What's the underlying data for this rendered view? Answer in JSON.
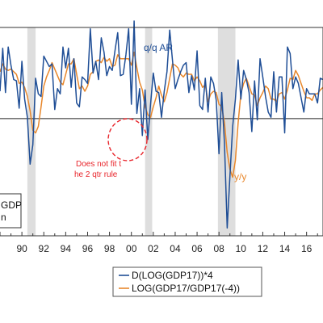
{
  "chart_data": {
    "type": "line",
    "x_start": 1988,
    "x_end": 2017.5,
    "ylim": [
      -9,
      7
    ],
    "zero_line": 0,
    "tick_labels": [
      "90",
      "92",
      "94",
      "96",
      "98",
      "00",
      "02",
      "04",
      "06",
      "08",
      "10",
      "12",
      "14",
      "16"
    ],
    "recessions": [
      [
        1990.5,
        1991.25
      ],
      [
        2001.25,
        2001.9
      ],
      [
        2007.9,
        2009.5
      ]
    ],
    "series": [
      {
        "name": "D(LOG(GDP17))*4",
        "color": "#1f4e96",
        "style": "solid",
        "x": [
          1988,
          1988.25,
          1988.5,
          1988.75,
          1989,
          1989.25,
          1989.5,
          1989.75,
          1990,
          1990.25,
          1990.5,
          1990.75,
          1991,
          1991.25,
          1991.5,
          1991.75,
          1992,
          1992.25,
          1992.5,
          1992.75,
          1993,
          1993.25,
          1993.5,
          1993.75,
          1994,
          1994.25,
          1994.5,
          1994.75,
          1995,
          1995.25,
          1995.5,
          1995.75,
          1996,
          1996.25,
          1996.5,
          1996.75,
          1997,
          1997.25,
          1997.5,
          1997.75,
          1998,
          1998.25,
          1998.5,
          1998.75,
          1999,
          1999.25,
          1999.5,
          1999.75,
          2000,
          2000.25,
          2000.5,
          2000.75,
          2001,
          2001.25,
          2001.5,
          2001.75,
          2002,
          2002.25,
          2002.5,
          2002.75,
          2003,
          2003.25,
          2003.5,
          2003.75,
          2004,
          2004.25,
          2004.5,
          2004.75,
          2005,
          2005.25,
          2005.5,
          2005.75,
          2006,
          2006.25,
          2006.5,
          2006.75,
          2007,
          2007.25,
          2007.5,
          2007.75,
          2008,
          2008.25,
          2008.5,
          2008.75,
          2009,
          2009.25,
          2009.5,
          2009.75,
          2010,
          2010.25,
          2010.5,
          2010.75,
          2011,
          2011.25,
          2011.5,
          2011.75,
          2012,
          2012.25,
          2012.5,
          2012.75,
          2013,
          2013.25,
          2013.5,
          2013.75,
          2014,
          2014.25,
          2014.5,
          2014.75,
          2015,
          2015.25,
          2015.5,
          2015.75,
          2016,
          2016.25,
          2016.5,
          2016.75,
          2017,
          2017.25,
          2017.5
        ],
        "y": [
          2.1,
          5.4,
          2.0,
          5.5,
          4.1,
          3.0,
          2.9,
          0.8,
          4.4,
          1.5,
          0.1,
          -3.5,
          -2.0,
          3.1,
          1.9,
          1.7,
          4.8,
          4.4,
          4.0,
          4.2,
          0.7,
          2.3,
          1.9,
          5.5,
          3.9,
          5.4,
          2.4,
          4.6,
          1.2,
          0.9,
          3.2,
          3.0,
          2.7,
          6.9,
          3.5,
          4.4,
          3.0,
          6.2,
          5.1,
          3.3,
          4.0,
          3.7,
          5.2,
          6.6,
          3.3,
          3.4,
          4.9,
          6.9,
          1.1,
          7.5,
          0.4,
          2.3,
          -1.3,
          2.2,
          -1.6,
          1.1,
          3.5,
          2.1,
          2.0,
          0.1,
          2.1,
          3.6,
          6.8,
          4.5,
          2.3,
          3.0,
          3.6,
          4.1,
          4.3,
          2.0,
          3.3,
          2.2,
          5.2,
          1.0,
          0.7,
          3.1,
          0.5,
          3.2,
          2.7,
          1.4,
          -2.7,
          2.0,
          -1.9,
          -8.4,
          -4.4,
          -0.6,
          1.5,
          4.5,
          1.5,
          3.7,
          3.0,
          2.0,
          -1.0,
          2.9,
          -0.1,
          4.6,
          3.2,
          1.7,
          0.5,
          0.1,
          3.6,
          0.5,
          3.2,
          3.2,
          -1.1,
          5.5,
          5.0,
          2.3,
          3.2,
          2.7,
          1.6,
          0.5,
          2.3,
          1.9,
          1.9,
          1.9,
          1.2,
          3.1,
          3.0
        ]
      },
      {
        "name": "LOG(GDP17/GDP17(-4))",
        "color": "#e8872b",
        "style": "solid",
        "x": [
          1988,
          1988.25,
          1988.5,
          1988.75,
          1989,
          1989.25,
          1989.5,
          1989.75,
          1990,
          1990.25,
          1990.5,
          1990.75,
          1991,
          1991.25,
          1991.5,
          1991.75,
          1992,
          1992.25,
          1992.5,
          1992.75,
          1993,
          1993.25,
          1993.5,
          1993.75,
          1994,
          1994.25,
          1994.5,
          1994.75,
          1995,
          1995.25,
          1995.5,
          1995.75,
          1996,
          1996.25,
          1996.5,
          1996.75,
          1997,
          1997.25,
          1997.5,
          1997.75,
          1998,
          1998.25,
          1998.5,
          1998.75,
          1999,
          1999.25,
          1999.5,
          1999.75,
          2000,
          2000.25,
          2000.5,
          2000.75,
          2001,
          2001.25,
          2001.5,
          2001.75,
          2002,
          2002.25,
          2002.5,
          2002.75,
          2003,
          2003.25,
          2003.5,
          2003.75,
          2004,
          2004.25,
          2004.5,
          2004.75,
          2005,
          2005.25,
          2005.5,
          2005.75,
          2006,
          2006.25,
          2006.5,
          2006.75,
          2007,
          2007.25,
          2007.5,
          2007.75,
          2008,
          2008.25,
          2008.5,
          2008.75,
          2009,
          2009.25,
          2009.5,
          2009.75,
          2010,
          2010.25,
          2010.5,
          2010.75,
          2011,
          2011.25,
          2011.5,
          2011.75,
          2012,
          2012.25,
          2012.5,
          2012.75,
          2013,
          2013.25,
          2013.5,
          2013.75,
          2014,
          2014.25,
          2014.5,
          2014.75,
          2015,
          2015.25,
          2015.5,
          2015.75,
          2016,
          2016.25,
          2016.5,
          2016.75,
          2017,
          2017.25,
          2017.5
        ],
        "y": [
          3.6,
          4.2,
          3.8,
          3.7,
          3.8,
          3.6,
          3.4,
          2.7,
          2.8,
          2.4,
          1.7,
          0.6,
          -0.9,
          -1.1,
          -0.6,
          0.9,
          2.5,
          3.2,
          3.7,
          4.3,
          3.8,
          3.3,
          2.8,
          2.6,
          3.4,
          4.2,
          4.2,
          4.6,
          3.4,
          2.3,
          2.5,
          2.1,
          2.5,
          3.4,
          3.6,
          4.4,
          4.5,
          4.3,
          4.7,
          4.4,
          4.6,
          4.0,
          4.1,
          4.9,
          4.6,
          4.6,
          4.6,
          4.6,
          4.1,
          5.1,
          3.9,
          2.8,
          2.2,
          0.9,
          0.3,
          0.1,
          0.9,
          1.6,
          2.5,
          1.8,
          1.3,
          2.0,
          3.1,
          4.2,
          4.1,
          3.9,
          3.4,
          3.2,
          3.5,
          3.4,
          3.4,
          2.9,
          3.2,
          2.9,
          2.4,
          2.6,
          1.3,
          1.9,
          2.1,
          2.0,
          1.1,
          0.9,
          -0.3,
          -2.6,
          -3.9,
          -4.5,
          -3.2,
          -0.3,
          1.9,
          2.7,
          3.1,
          2.5,
          1.9,
          1.8,
          1.0,
          1.6,
          2.0,
          2.5,
          2.3,
          1.5,
          1.5,
          1.3,
          1.9,
          2.0,
          1.5,
          2.2,
          3.1,
          3.0,
          3.7,
          3.3,
          2.7,
          2.1,
          1.6,
          1.6,
          1.4,
          1.9,
          1.9,
          2.2,
          2.4
        ]
      }
    ]
  },
  "annotations": {
    "qq": "q/q AR",
    "yy": "y/y",
    "note_line1": "Does not fit t",
    "note_line2": "he 2 qtr rule"
  },
  "boxed_text": {
    "line1": "GDP",
    "line2": "n"
  },
  "legend": {
    "items": [
      {
        "label": "D(LOG(GDP17))*4",
        "color": "#1f4e96"
      },
      {
        "label": "LOG(GDP17/GDP17(-4))",
        "color": "#e8872b"
      }
    ]
  },
  "colors": {
    "recession_fill": "#dedede",
    "circle": "#e8242a",
    "axis": "#333333"
  }
}
